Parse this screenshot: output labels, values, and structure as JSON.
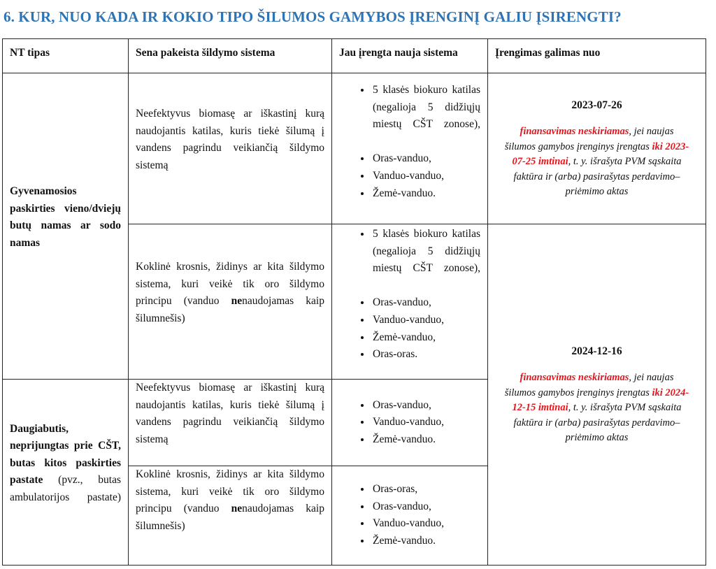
{
  "title": "6. KUR, NUO KADA IR KOKIO TIPO ŠILUMOS GAMYBOS ĮRENGINĮ GALIU ĮSIRENGTI?",
  "headers": [
    "NT tipas",
    "Sena pakeista šildymo sistema",
    "Jau įrengta nauja sistema",
    "Įrengimas galimas nuo"
  ],
  "nt_types": [
    {
      "bold": "Gyvenamosios paskirties vieno/dviejų butų namas ar sodo namas",
      "normal": ""
    },
    {
      "bold": "Daugiabutis, neprijungtas prie CŠT, butas kitos paskirties pastate",
      "normal": " (pvz., butas ambulatorijos pastate)"
    }
  ],
  "old_systems": {
    "boiler": "Neefektyvus biomasę ar iškastinį kurą naudojantis katilas, kuris tiekė šilumą į vandens pagrindu veikiančią šildymo sistemą",
    "stove_a": "Koklinė krosnis, židinys ar kita šildymo sistema, kuri veikė tik oro šildymo principu (vanduo ",
    "stove_bold": "ne",
    "stove_b": "naudojamas kaip šilumnešis)"
  },
  "new_systems": [
    [
      "5 klasės biokuro katilas (negalioja 5 didžiųjų miestų CŠT zonose),",
      "Oras-vanduo,",
      "Vanduo-vanduo,",
      "Žemė-vanduo."
    ],
    [
      "5 klasės biokuro katilas (negalioja 5 didžiųjų miestų CŠT zonose),",
      "Oras-vanduo,",
      "Vanduo-vanduo,",
      "Žemė-vanduo,",
      "Oras-oras."
    ],
    [
      "Oras-vanduo,",
      "Vanduo-vanduo,",
      "Žemė-vanduo."
    ],
    [
      "Oras-oras,",
      "Oras-vanduo,",
      "Vanduo-vanduo,",
      "Žemė-vanduo."
    ]
  ],
  "availability": [
    {
      "date": "2023-07-26",
      "red1": "finansavimas neskiriamas",
      "text1": ", jei naujas šilumos gamybos įrenginys įrengtas ",
      "red2": "iki 2023-07-25 imtinai",
      "text2": ", t. y. išrašyta PVM sąskaita faktūra ir (arba) pasirašytas perdavimo–priėmimo aktas"
    },
    {
      "date": "2024-12-16",
      "red1": "finansavimas neskiriamas",
      "text1": ", jei naujas šilumos gamybos įrenginys įrengtas ",
      "red2": "iki 2024-12-15 imtinai",
      "text2": ", t. y. išrašyta PVM sąskaita faktūra ir (arba) pasirašytas perdavimo–priėmimo aktas"
    }
  ],
  "colors": {
    "title": "#2e74b5",
    "highlight": "#e8141c"
  }
}
